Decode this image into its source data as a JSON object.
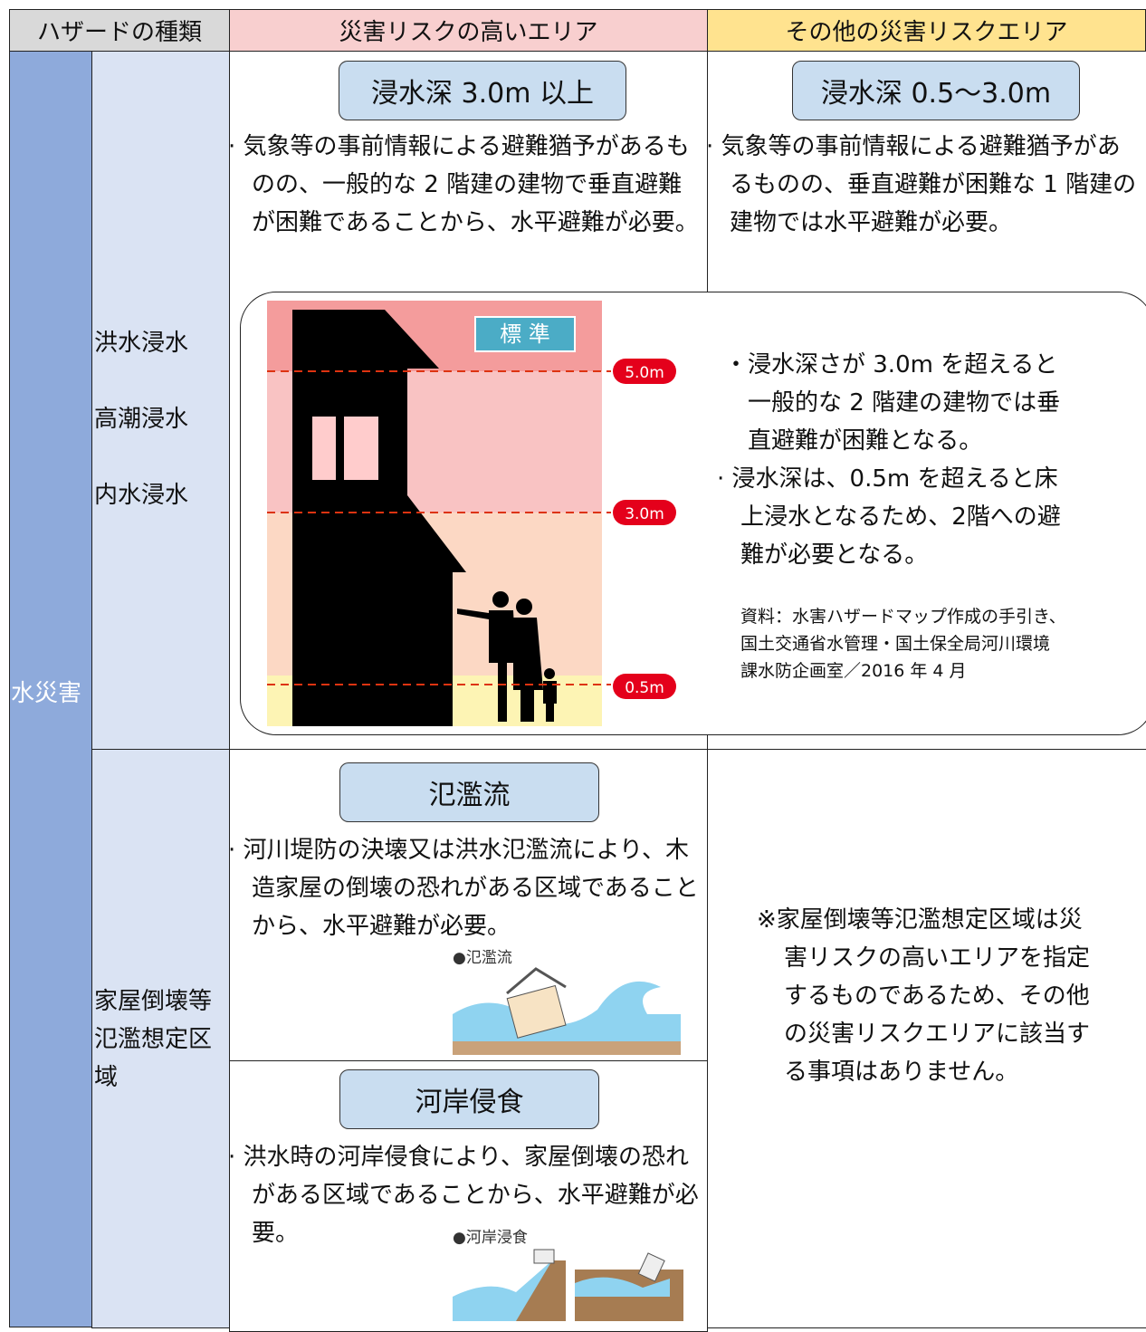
{
  "header": {
    "hazard_type": "ハザードの種類",
    "high_risk": "災害リスクの高いエリア",
    "other_risk": "その他の災害リスクエリア"
  },
  "category": "水災害",
  "rows": [
    {
      "hazards": [
        "洪水浸水",
        "高潮浸水",
        "内水浸水"
      ],
      "high": {
        "title": "浸水深 3.0m 以上",
        "text": "· 気象等の事前情報による避難猶予があるものの、一般的な 2 階建の建物で垂直避難が困難であることから、水平避難が必要。"
      },
      "other": {
        "title": "浸水深 0.5～3.0m",
        "text": "· 気象等の事前情報による避難猶予があるものの、垂直避難が困難な 1 階建の建物では水平避難が必要。"
      },
      "figure": {
        "badge": "標 準",
        "levels": [
          "5.0m",
          "3.0m",
          "0.5m"
        ]
      },
      "notes": [
        "・浸水深さが 3.0m を超えると一般的な 2 階建の建物では垂直避難が困難となる。",
        "· 浸水深は、0.5m を超えると床上浸水となるため、2階への避難が必要となる。"
      ],
      "source": "資料：水害ハザードマップ作成の手引き、国土交通省水管理・国土保全局河川環境課水防企画室／2016 年 4 月"
    },
    {
      "hazards": [
        "家屋倒壊等氾濫想定区域"
      ],
      "high": [
        {
          "title": "氾濫流",
          "text": "· 河川堤防の決壊又は洪水氾濫流により、木造家屋の倒壊の恐れがある区域であることから、水平避難が必要。",
          "image_label": "●氾濫流"
        },
        {
          "title": "河岸侵食",
          "text": "· 洪水時の河岸侵食により、家屋倒壊の恐れがある区域であることから、水平避難が必要。",
          "image_label": "●河岸浸食"
        }
      ],
      "other": "※家屋倒壊等氾濫想定区域は災害リスクの高いエリアを指定するものであるため、その他の災害リスクエリアに該当する事項はありません。"
    }
  ]
}
